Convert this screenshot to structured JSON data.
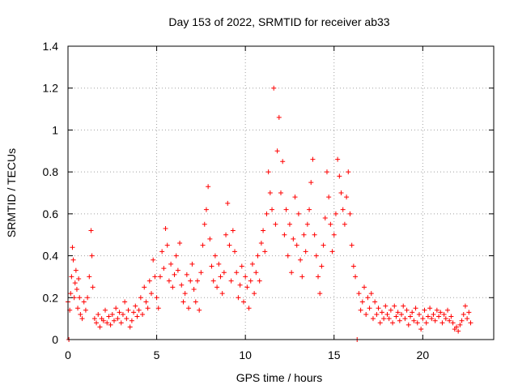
{
  "chart_data": {
    "type": "scatter",
    "title": "Day 153 of 2022, SRMTID for receiver ab33",
    "xlabel": "GPS time / hours",
    "ylabel": "SRMTID / TECUs",
    "xlim": [
      0,
      24
    ],
    "ylim": [
      0,
      1.4
    ],
    "x_ticks": [
      0,
      5,
      10,
      15,
      20
    ],
    "x_tick_labels": [
      "0",
      "5",
      "10",
      "15",
      "20"
    ],
    "y_ticks": [
      0,
      0.2,
      0.4,
      0.6,
      0.8,
      1.0,
      1.2,
      1.4
    ],
    "y_tick_labels": [
      "0",
      "0.2",
      "0.4",
      "0.6",
      "0.8",
      "1",
      "1.2",
      "1.4"
    ],
    "grid": true,
    "marker": "+",
    "color": "#ff0000",
    "series": [
      {
        "name": "SRMTID",
        "points": [
          [
            0.0,
            0.18
          ],
          [
            0.05,
            0.0
          ],
          [
            0.1,
            0.14
          ],
          [
            0.15,
            0.22
          ],
          [
            0.2,
            0.3
          ],
          [
            0.25,
            0.44
          ],
          [
            0.3,
            0.38
          ],
          [
            0.35,
            0.2
          ],
          [
            0.4,
            0.27
          ],
          [
            0.45,
            0.33
          ],
          [
            0.5,
            0.24
          ],
          [
            0.55,
            0.15
          ],
          [
            0.6,
            0.29
          ],
          [
            0.65,
            0.2
          ],
          [
            0.7,
            0.12
          ],
          [
            0.8,
            0.1
          ],
          [
            0.9,
            0.18
          ],
          [
            1.0,
            0.14
          ],
          [
            1.1,
            0.2
          ],
          [
            1.2,
            0.3
          ],
          [
            1.3,
            0.52
          ],
          [
            1.35,
            0.4
          ],
          [
            1.4,
            0.25
          ],
          [
            1.5,
            0.1
          ],
          [
            1.6,
            0.08
          ],
          [
            1.7,
            0.12
          ],
          [
            1.8,
            0.06
          ],
          [
            1.9,
            0.1
          ],
          [
            2.0,
            0.09
          ],
          [
            2.1,
            0.14
          ],
          [
            2.2,
            0.08
          ],
          [
            2.3,
            0.11
          ],
          [
            2.4,
            0.07
          ],
          [
            2.5,
            0.12
          ],
          [
            2.6,
            0.09
          ],
          [
            2.7,
            0.15
          ],
          [
            2.8,
            0.1
          ],
          [
            2.9,
            0.13
          ],
          [
            3.0,
            0.08
          ],
          [
            3.1,
            0.12
          ],
          [
            3.2,
            0.18
          ],
          [
            3.3,
            0.1
          ],
          [
            3.4,
            0.14
          ],
          [
            3.5,
            0.06
          ],
          [
            3.6,
            0.09
          ],
          [
            3.7,
            0.13
          ],
          [
            3.8,
            0.16
          ],
          [
            3.9,
            0.11
          ],
          [
            4.0,
            0.14
          ],
          [
            4.1,
            0.2
          ],
          [
            4.2,
            0.12
          ],
          [
            4.3,
            0.25
          ],
          [
            4.4,
            0.18
          ],
          [
            4.5,
            0.15
          ],
          [
            4.6,
            0.28
          ],
          [
            4.7,
            0.22
          ],
          [
            4.8,
            0.38
          ],
          [
            4.9,
            0.3
          ],
          [
            5.0,
            0.2
          ],
          [
            5.1,
            0.15
          ],
          [
            5.2,
            0.3
          ],
          [
            5.3,
            0.42
          ],
          [
            5.4,
            0.34
          ],
          [
            5.5,
            0.53
          ],
          [
            5.6,
            0.45
          ],
          [
            5.7,
            0.28
          ],
          [
            5.8,
            0.36
          ],
          [
            5.9,
            0.25
          ],
          [
            6.0,
            0.31
          ],
          [
            6.1,
            0.4
          ],
          [
            6.2,
            0.33
          ],
          [
            6.3,
            0.46
          ],
          [
            6.4,
            0.26
          ],
          [
            6.5,
            0.18
          ],
          [
            6.6,
            0.22
          ],
          [
            6.7,
            0.31
          ],
          [
            6.8,
            0.15
          ],
          [
            6.9,
            0.28
          ],
          [
            7.0,
            0.36
          ],
          [
            7.1,
            0.24
          ],
          [
            7.2,
            0.18
          ],
          [
            7.3,
            0.28
          ],
          [
            7.4,
            0.14
          ],
          [
            7.5,
            0.32
          ],
          [
            7.6,
            0.45
          ],
          [
            7.7,
            0.55
          ],
          [
            7.8,
            0.62
          ],
          [
            7.9,
            0.73
          ],
          [
            8.0,
            0.48
          ],
          [
            8.1,
            0.35
          ],
          [
            8.2,
            0.28
          ],
          [
            8.3,
            0.4
          ],
          [
            8.4,
            0.25
          ],
          [
            8.5,
            0.36
          ],
          [
            8.6,
            0.3
          ],
          [
            8.7,
            0.22
          ],
          [
            8.8,
            0.32
          ],
          [
            8.9,
            0.5
          ],
          [
            9.0,
            0.65
          ],
          [
            9.1,
            0.45
          ],
          [
            9.2,
            0.28
          ],
          [
            9.3,
            0.52
          ],
          [
            9.4,
            0.42
          ],
          [
            9.5,
            0.32
          ],
          [
            9.6,
            0.2
          ],
          [
            9.7,
            0.26
          ],
          [
            9.8,
            0.35
          ],
          [
            9.9,
            0.18
          ],
          [
            10.0,
            0.3
          ],
          [
            10.1,
            0.25
          ],
          [
            10.2,
            0.15
          ],
          [
            10.3,
            0.28
          ],
          [
            10.4,
            0.36
          ],
          [
            10.5,
            0.22
          ],
          [
            10.6,
            0.32
          ],
          [
            10.7,
            0.4
          ],
          [
            10.8,
            0.28
          ],
          [
            10.9,
            0.46
          ],
          [
            11.0,
            0.52
          ],
          [
            11.1,
            0.42
          ],
          [
            11.2,
            0.6
          ],
          [
            11.3,
            0.8
          ],
          [
            11.4,
            0.7
          ],
          [
            11.5,
            0.62
          ],
          [
            11.6,
            1.2
          ],
          [
            11.7,
            0.55
          ],
          [
            11.8,
            0.9
          ],
          [
            11.9,
            1.06
          ],
          [
            12.0,
            0.7
          ],
          [
            12.1,
            0.85
          ],
          [
            12.2,
            0.5
          ],
          [
            12.3,
            0.62
          ],
          [
            12.4,
            0.4
          ],
          [
            12.5,
            0.55
          ],
          [
            12.6,
            0.32
          ],
          [
            12.7,
            0.48
          ],
          [
            12.8,
            0.68
          ],
          [
            12.9,
            0.45
          ],
          [
            13.0,
            0.6
          ],
          [
            13.1,
            0.38
          ],
          [
            13.2,
            0.3
          ],
          [
            13.3,
            0.5
          ],
          [
            13.4,
            0.42
          ],
          [
            13.5,
            0.55
          ],
          [
            13.6,
            0.62
          ],
          [
            13.7,
            0.75
          ],
          [
            13.8,
            0.86
          ],
          [
            13.9,
            0.5
          ],
          [
            14.0,
            0.4
          ],
          [
            14.1,
            0.3
          ],
          [
            14.2,
            0.22
          ],
          [
            14.3,
            0.35
          ],
          [
            14.4,
            0.45
          ],
          [
            14.5,
            0.58
          ],
          [
            14.6,
            0.8
          ],
          [
            14.7,
            0.68
          ],
          [
            14.8,
            0.55
          ],
          [
            14.9,
            0.42
          ],
          [
            15.0,
            0.5
          ],
          [
            15.1,
            0.6
          ],
          [
            15.2,
            0.86
          ],
          [
            15.3,
            0.78
          ],
          [
            15.4,
            0.7
          ],
          [
            15.5,
            0.62
          ],
          [
            15.6,
            0.55
          ],
          [
            15.7,
            0.68
          ],
          [
            15.8,
            0.8
          ],
          [
            15.9,
            0.6
          ],
          [
            16.0,
            0.45
          ],
          [
            16.1,
            0.35
          ],
          [
            16.2,
            0.3
          ],
          [
            16.3,
            0.0
          ],
          [
            16.4,
            0.22
          ],
          [
            16.5,
            0.14
          ],
          [
            16.6,
            0.18
          ],
          [
            16.7,
            0.25
          ],
          [
            16.8,
            0.12
          ],
          [
            16.9,
            0.2
          ],
          [
            17.0,
            0.15
          ],
          [
            17.1,
            0.22
          ],
          [
            17.2,
            0.1
          ],
          [
            17.3,
            0.18
          ],
          [
            17.4,
            0.12
          ],
          [
            17.5,
            0.15
          ],
          [
            17.6,
            0.08
          ],
          [
            17.7,
            0.13
          ],
          [
            17.8,
            0.1
          ],
          [
            17.9,
            0.16
          ],
          [
            18.0,
            0.12
          ],
          [
            18.1,
            0.1
          ],
          [
            18.2,
            0.14
          ],
          [
            18.3,
            0.08
          ],
          [
            18.4,
            0.16
          ],
          [
            18.5,
            0.11
          ],
          [
            18.6,
            0.13
          ],
          [
            18.7,
            0.09
          ],
          [
            18.8,
            0.12
          ],
          [
            18.9,
            0.16
          ],
          [
            19.0,
            0.1
          ],
          [
            19.1,
            0.14
          ],
          [
            19.2,
            0.07
          ],
          [
            19.3,
            0.11
          ],
          [
            19.4,
            0.13
          ],
          [
            19.5,
            0.09
          ],
          [
            19.6,
            0.15
          ],
          [
            19.7,
            0.08
          ],
          [
            19.8,
            0.12
          ],
          [
            19.9,
            0.05
          ],
          [
            20.0,
            0.1
          ],
          [
            20.1,
            0.14
          ],
          [
            20.2,
            0.08
          ],
          [
            20.3,
            0.11
          ],
          [
            20.4,
            0.15
          ],
          [
            20.5,
            0.1
          ],
          [
            20.6,
            0.12
          ],
          [
            20.7,
            0.09
          ],
          [
            20.8,
            0.14
          ],
          [
            20.9,
            0.11
          ],
          [
            21.0,
            0.13
          ],
          [
            21.1,
            0.08
          ],
          [
            21.2,
            0.12
          ],
          [
            21.3,
            0.1
          ],
          [
            21.4,
            0.14
          ],
          [
            21.5,
            0.09
          ],
          [
            21.6,
            0.11
          ],
          [
            21.7,
            0.08
          ],
          [
            21.8,
            0.05
          ],
          [
            21.9,
            0.06
          ],
          [
            22.0,
            0.04
          ],
          [
            22.1,
            0.07
          ],
          [
            22.2,
            0.09
          ],
          [
            22.3,
            0.12
          ],
          [
            22.4,
            0.16
          ],
          [
            22.5,
            0.1
          ],
          [
            22.6,
            0.13
          ],
          [
            22.7,
            0.08
          ]
        ]
      }
    ]
  }
}
